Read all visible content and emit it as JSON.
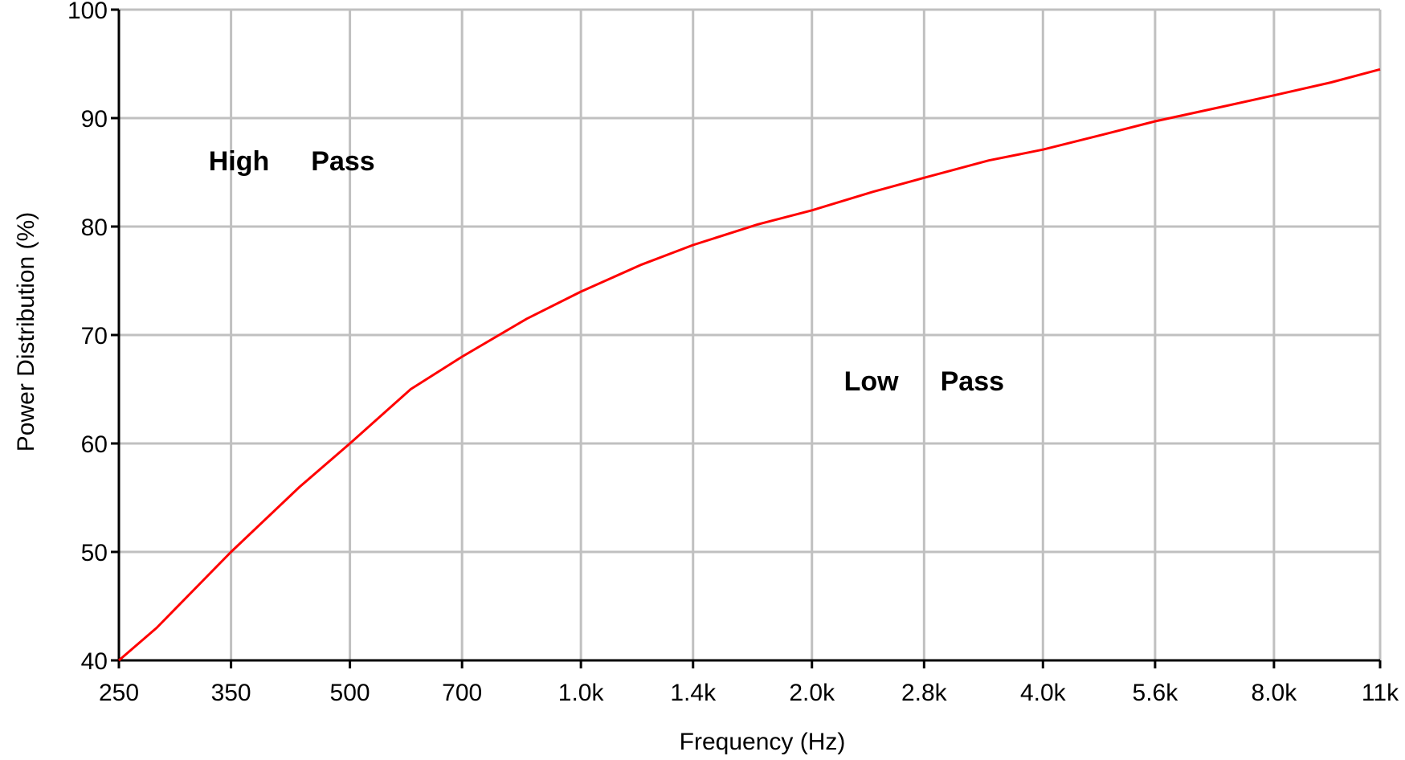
{
  "chart_data": {
    "type": "line",
    "xlabel": "Frequency (Hz)",
    "ylabel": "Power Distribution (%)",
    "x_scale": "log",
    "x_ticks": [
      "250",
      "350",
      "500",
      "700",
      "1.0k",
      "1.4k",
      "2.0k",
      "2.8k",
      "4.0k",
      "5.6k",
      "8.0k",
      "11k"
    ],
    "y_ticks": [
      "40",
      "50",
      "60",
      "70",
      "80",
      "90",
      "100"
    ],
    "ylim": [
      40,
      100
    ],
    "grid": true,
    "series": [
      {
        "color": "#ff0000",
        "x": [
          250,
          280,
          350,
          430,
          500,
          600,
          700,
          850,
          1000,
          1200,
          1400,
          1700,
          2000,
          2400,
          2800,
          3400,
          4000,
          4800,
          5600,
          6800,
          8000,
          9500,
          11000
        ],
        "y": [
          40,
          43,
          50,
          56,
          60,
          65,
          68,
          71.5,
          74,
          76.5,
          78.3,
          80.2,
          81.5,
          83.2,
          84.5,
          86.1,
          87.1,
          88.5,
          89.7,
          91,
          92.1,
          93.3,
          94.5
        ]
      }
    ],
    "annotations": [
      {
        "words": [
          "High",
          "Pass"
        ],
        "x": 420,
        "y": 85.2
      },
      {
        "words": [
          "Low",
          "Pass"
        ],
        "x": 2800,
        "y": 64.9
      }
    ]
  }
}
